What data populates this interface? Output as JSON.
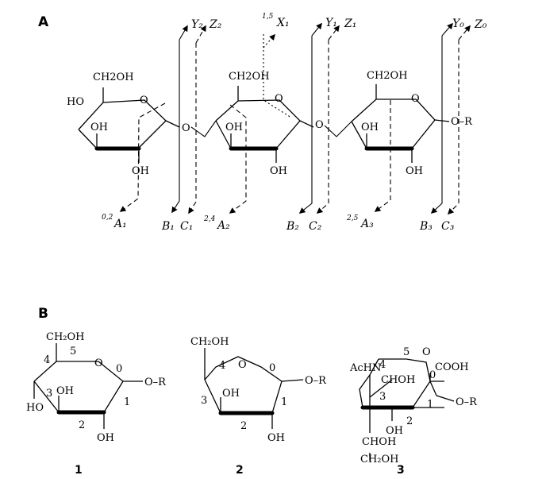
{
  "panels": {
    "a": "A",
    "b": "B"
  },
  "groups": {
    "ch2oh": "CH₂OH",
    "ch2oh_plain": "CH2OH",
    "oh": "OH",
    "ho": "HO",
    "o": "O",
    "or": "O–R",
    "achn": "AcHN",
    "chohp": "CHOH",
    "cooh": "COOH"
  },
  "fragments": {
    "y2": "Y₂",
    "z2": "Z₂",
    "x1": "X₁",
    "x1_sup": "1,5",
    "y1": "Y₁",
    "z1": "Z₁",
    "y0": "Y₀",
    "z0": "Z₀",
    "a1": "A₁",
    "a1_sup": "0,2",
    "b1": "B₁",
    "c1": "C₁",
    "a2": "A₂",
    "a2_sup": "2,4",
    "b2": "B₂",
    "c2": "C₂",
    "a3": "A₃",
    "a3_sup": "2,5",
    "b3": "B₃",
    "c3": "C₃"
  },
  "ring_numbers": {
    "s1": {
      "n5": "5",
      "n4": "4",
      "n0": "0",
      "n3": "3",
      "n1": "1",
      "n2": "2"
    },
    "s2": {
      "n4": "4",
      "n0": "0",
      "n3": "3",
      "n1": "1",
      "n2": "2"
    },
    "s3": {
      "n5": "5",
      "n4": "4",
      "n0": "0",
      "n3": "3",
      "n1": "1",
      "n2": "2"
    }
  },
  "compounds": [
    "1",
    "2",
    "3"
  ]
}
